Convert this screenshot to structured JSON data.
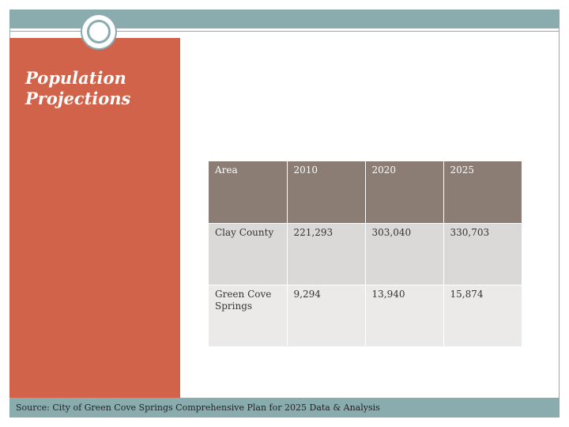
{
  "slide": {
    "title": "Population Projections",
    "source": "Source: City of Green Cove Springs Comprehensive Plan for 2025 Data & Analysis"
  },
  "table": {
    "headers": [
      "Area",
      "2010",
      "2020",
      "2025"
    ],
    "rows": [
      [
        "Clay County",
        "221,293",
        "303,040",
        "330,703"
      ],
      [
        "Green Cove Springs",
        "9,294",
        "13,940",
        "15,874"
      ]
    ]
  },
  "colors": {
    "accent": "#d1634a",
    "frame": "#8aacaf",
    "header_bg": "#8b7d73"
  }
}
